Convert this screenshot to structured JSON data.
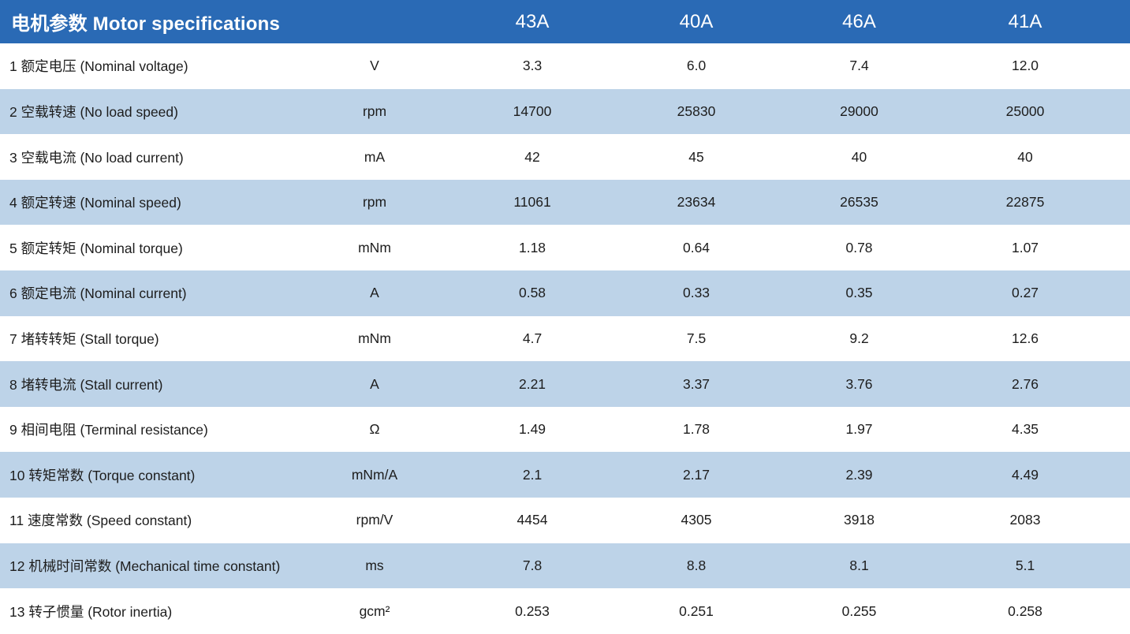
{
  "header": {
    "title": "电机参数 Motor specifications",
    "columns": [
      "43A",
      "40A",
      "46A",
      "41A"
    ]
  },
  "rows": [
    {
      "name": "1 额定电压 (Nominal voltage)",
      "unit": "V",
      "values": [
        "3.3",
        "6.0",
        "7.4",
        "12.0"
      ]
    },
    {
      "name": "2 空载转速 (No load speed)",
      "unit": "rpm",
      "values": [
        "14700",
        "25830",
        "29000",
        "25000"
      ]
    },
    {
      "name": "3 空载电流 (No load current)",
      "unit": "mA",
      "values": [
        "42",
        "45",
        "40",
        "40"
      ]
    },
    {
      "name": "4 额定转速 (Nominal speed)",
      "unit": "rpm",
      "values": [
        "11061",
        "23634",
        "26535",
        "22875"
      ]
    },
    {
      "name": "5 额定转矩 (Nominal torque)",
      "unit": "mNm",
      "values": [
        "1.18",
        "0.64",
        "0.78",
        "1.07"
      ]
    },
    {
      "name": "6 额定电流 (Nominal current)",
      "unit": "A",
      "values": [
        "0.58",
        "0.33",
        "0.35",
        "0.27"
      ]
    },
    {
      "name": "7 堵转转矩 (Stall torque)",
      "unit": "mNm",
      "values": [
        "4.7",
        "7.5",
        "9.2",
        "12.6"
      ]
    },
    {
      "name": "8 堵转电流 (Stall current)",
      "unit": "A",
      "values": [
        "2.21",
        "3.37",
        "3.76",
        "2.76"
      ]
    },
    {
      "name": "9 相间电阻 (Terminal resistance)",
      "unit": "Ω",
      "values": [
        "1.49",
        "1.78",
        "1.97",
        "4.35"
      ]
    },
    {
      "name": "10 转矩常数 (Torque constant)",
      "unit": "mNm/A",
      "values": [
        "2.1",
        "2.17",
        "2.39",
        "4.49"
      ]
    },
    {
      "name": "11 速度常数 (Speed constant)",
      "unit": "rpm/V",
      "values": [
        "4454",
        "4305",
        "3918",
        "2083"
      ]
    },
    {
      "name": "12 机械时间常数 (Mechanical time constant)",
      "unit": "ms",
      "values": [
        "7.8",
        "8.8",
        "8.1",
        "5.1"
      ]
    },
    {
      "name": "13 转子惯量 (Rotor inertia)",
      "unit": "gcm²",
      "values": [
        "0.253",
        "0.251",
        "0.255",
        "0.258"
      ]
    }
  ],
  "colors": {
    "header_bg": "#2A6AB5",
    "header_text": "#FFFFFF",
    "row_bg": "#FFFFFF",
    "row_alt_bg": "#BDD3E8",
    "body_text": "#1D1D1D"
  }
}
